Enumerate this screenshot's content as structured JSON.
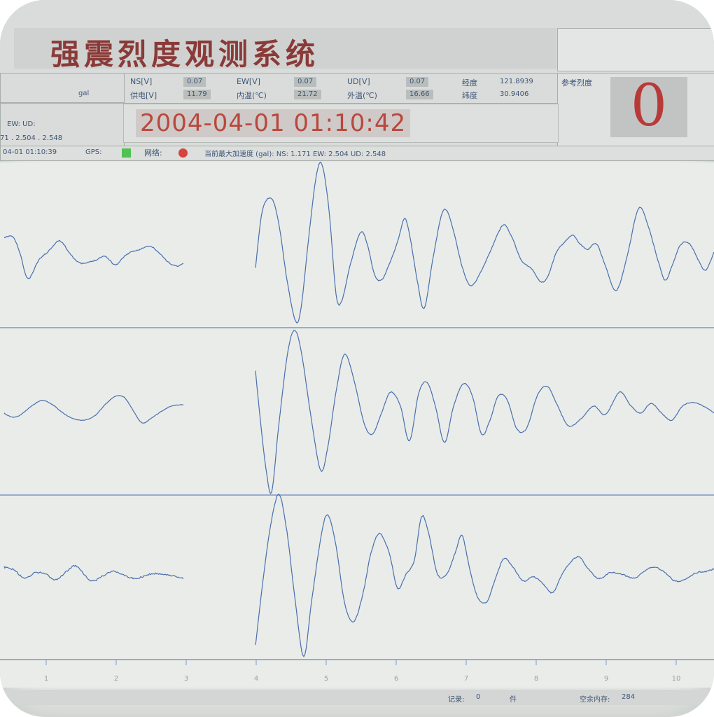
{
  "header": {
    "title": "强震烈度观测系统",
    "unit_gal": "gal",
    "params_row1": [
      {
        "label": "NS[V]",
        "value": "0.07"
      },
      {
        "label": "EW[V]",
        "value": "0.07"
      },
      {
        "label": "UD[V]",
        "value": "0.07"
      },
      {
        "label": "经度",
        "value": "121.8939"
      }
    ],
    "params_row2": [
      {
        "label": "供电[V]",
        "value": "11.79"
      },
      {
        "label": "内温(℃)",
        "value": "21.72"
      },
      {
        "label": "外温(℃)",
        "value": "16.66"
      },
      {
        "label": "纬度",
        "value": "30.9406"
      }
    ],
    "ref_intensity_label": "参考烈度",
    "ref_intensity_value": "0",
    "left_axes_label": "EW: UD:",
    "left_axes_values": "71 . 2.504 . 2.548",
    "datetime": "2004-04-01 01:10:42"
  },
  "status": {
    "timestamp": "04-01 01:10:39",
    "gps_label": "GPS:",
    "network_label": "网络:",
    "max_accel_text": "当前最大加速度 (gal): NS: 1.171 EW: 2.504 UD: 2.548",
    "colors": {
      "gps": "#4fc24f",
      "network": "#d6443c"
    }
  },
  "time_axis_ticks": [
    "1",
    "2",
    "3",
    "4",
    "5",
    "6",
    "7",
    "8",
    "9",
    "10"
  ],
  "footer": {
    "records_label": "记录:",
    "records_value": "0",
    "records_unit": "件",
    "memory_label": "空余内存:",
    "memory_value": "284"
  },
  "colors": {
    "trace": "#4a6fae",
    "divider": "#7d96c2",
    "title": "#8a3a38",
    "datetime": "#b8483c"
  }
}
